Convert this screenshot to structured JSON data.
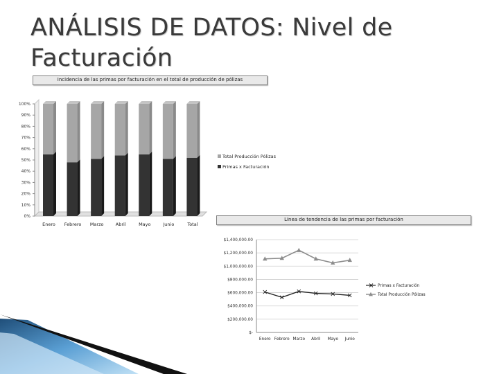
{
  "slide": {
    "title": "ANÁLISIS DE DATOS: Nivel de Facturación"
  },
  "colors": {
    "bar_top": "#a6a6a6",
    "bar_bottom": "#333333",
    "line_primas": "#222222",
    "line_total": "#8c8c8c",
    "accent_blue": "#4f8fbf"
  },
  "chart_data": [
    {
      "type": "bar",
      "stacked": true,
      "percent": true,
      "title": "Incidencia de las primas por facturación en el total de producción de pólizas",
      "categories": [
        "Enero",
        "Febrero",
        "Marzo",
        "Abril",
        "Mayo",
        "Junio",
        "Total"
      ],
      "series": [
        {
          "name": "Primas x Facturación",
          "values": [
            55,
            48,
            51,
            54,
            55,
            51,
            52
          ]
        },
        {
          "name": "Total Producción Pólizas",
          "values": [
            45,
            52,
            49,
            46,
            45,
            49,
            48
          ]
        }
      ],
      "yticks": [
        "0%",
        "10%",
        "20%",
        "30%",
        "40%",
        "50%",
        "60%",
        "70%",
        "80%",
        "90%",
        "100%"
      ],
      "ylim": [
        0,
        100
      ],
      "legend": "right"
    },
    {
      "type": "line",
      "title": "Línea de tendencia de las primas por facturación",
      "categories": [
        "Enero",
        "Febrero",
        "Marzo",
        "Abril",
        "Mayo",
        "Junio"
      ],
      "series": [
        {
          "name": "Primas x Facturación",
          "values": [
            610000,
            530000,
            620000,
            590000,
            580000,
            560000
          ]
        },
        {
          "name": "Total Producción Pólizas",
          "values": [
            1110000,
            1120000,
            1240000,
            1110000,
            1050000,
            1090000
          ]
        }
      ],
      "yticks": [
        "$-",
        "$200,000.00",
        "$400,000.00",
        "$600,000.00",
        "$800,000.00",
        "$1,000,000.00",
        "$1,200,000.00",
        "$1,400,000.00"
      ],
      "ylim": [
        0,
        1400000
      ],
      "grid": true,
      "legend": "right"
    }
  ]
}
